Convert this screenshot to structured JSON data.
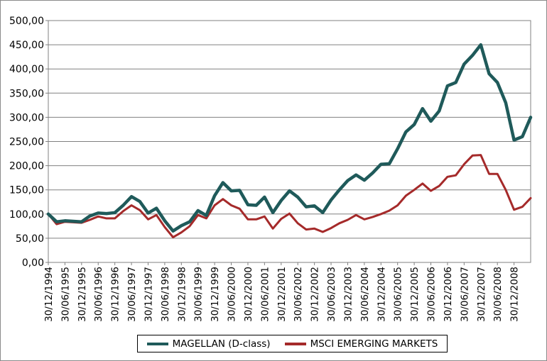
{
  "chart_data": {
    "type": "line",
    "title": "",
    "xlabel": "",
    "ylabel": "",
    "ylim": [
      0,
      500
    ],
    "yticks": [
      0,
      50,
      100,
      150,
      200,
      250,
      300,
      350,
      400,
      450,
      500
    ],
    "ytick_labels": [
      "0,00",
      "50,00",
      "100,00",
      "150,00",
      "200,00",
      "250,00",
      "300,00",
      "350,00",
      "400,00",
      "450,00",
      "500,00"
    ],
    "grid": "horizontal",
    "legend_position": "bottom",
    "x_tick_labels": [
      "30/12/1994",
      "30/06/1995",
      "30/12/1995",
      "30/06/1996",
      "30/12/1996",
      "30/06/1997",
      "30/12/1997",
      "30/06/1998",
      "30/12/1998",
      "30/06/1999",
      "30/12/1999",
      "30/06/2000",
      "30/12/2000",
      "30/06/2001",
      "30/12/2001",
      "30/06/2002",
      "30/12/2002",
      "30/06/2003",
      "30/12/2003",
      "30/06/2004",
      "30/12/2004",
      "30/06/2005",
      "30/12/2005",
      "30/06/2006",
      "30/12/2006",
      "30/06/2007",
      "30/12/2007",
      "30/06/2008",
      "30/12/2008"
    ],
    "series": [
      {
        "name": "MAGELLAN (D-class)",
        "color": "#1f5a5a",
        "values": [
          100,
          84,
          86,
          85,
          84,
          96,
          102,
          101,
          103,
          118,
          136,
          126,
          102,
          112,
          86,
          65,
          76,
          84,
          107,
          97,
          138,
          165,
          148,
          149,
          119,
          118,
          135,
          103,
          128,
          148,
          135,
          115,
          117,
          103,
          129,
          150,
          169,
          181,
          170,
          185,
          203,
          204,
          235,
          270,
          285,
          318,
          292,
          313,
          365,
          372,
          410,
          428,
          450,
          390,
          372,
          330,
          253,
          260,
          300
        ]
      },
      {
        "name": "MSCI EMERGING MARKETS",
        "color": "#a52a2a",
        "values": [
          100,
          79,
          84,
          83,
          82,
          88,
          95,
          91,
          91,
          106,
          118,
          108,
          89,
          98,
          73,
          52,
          62,
          75,
          98,
          91,
          118,
          131,
          118,
          111,
          89,
          89,
          95,
          70,
          90,
          101,
          81,
          68,
          70,
          63,
          71,
          81,
          88,
          98,
          89,
          94,
          100,
          107,
          118,
          138,
          150,
          163,
          148,
          158,
          177,
          180,
          203,
          221,
          222,
          183,
          183,
          150,
          109,
          115,
          133
        ]
      }
    ]
  }
}
